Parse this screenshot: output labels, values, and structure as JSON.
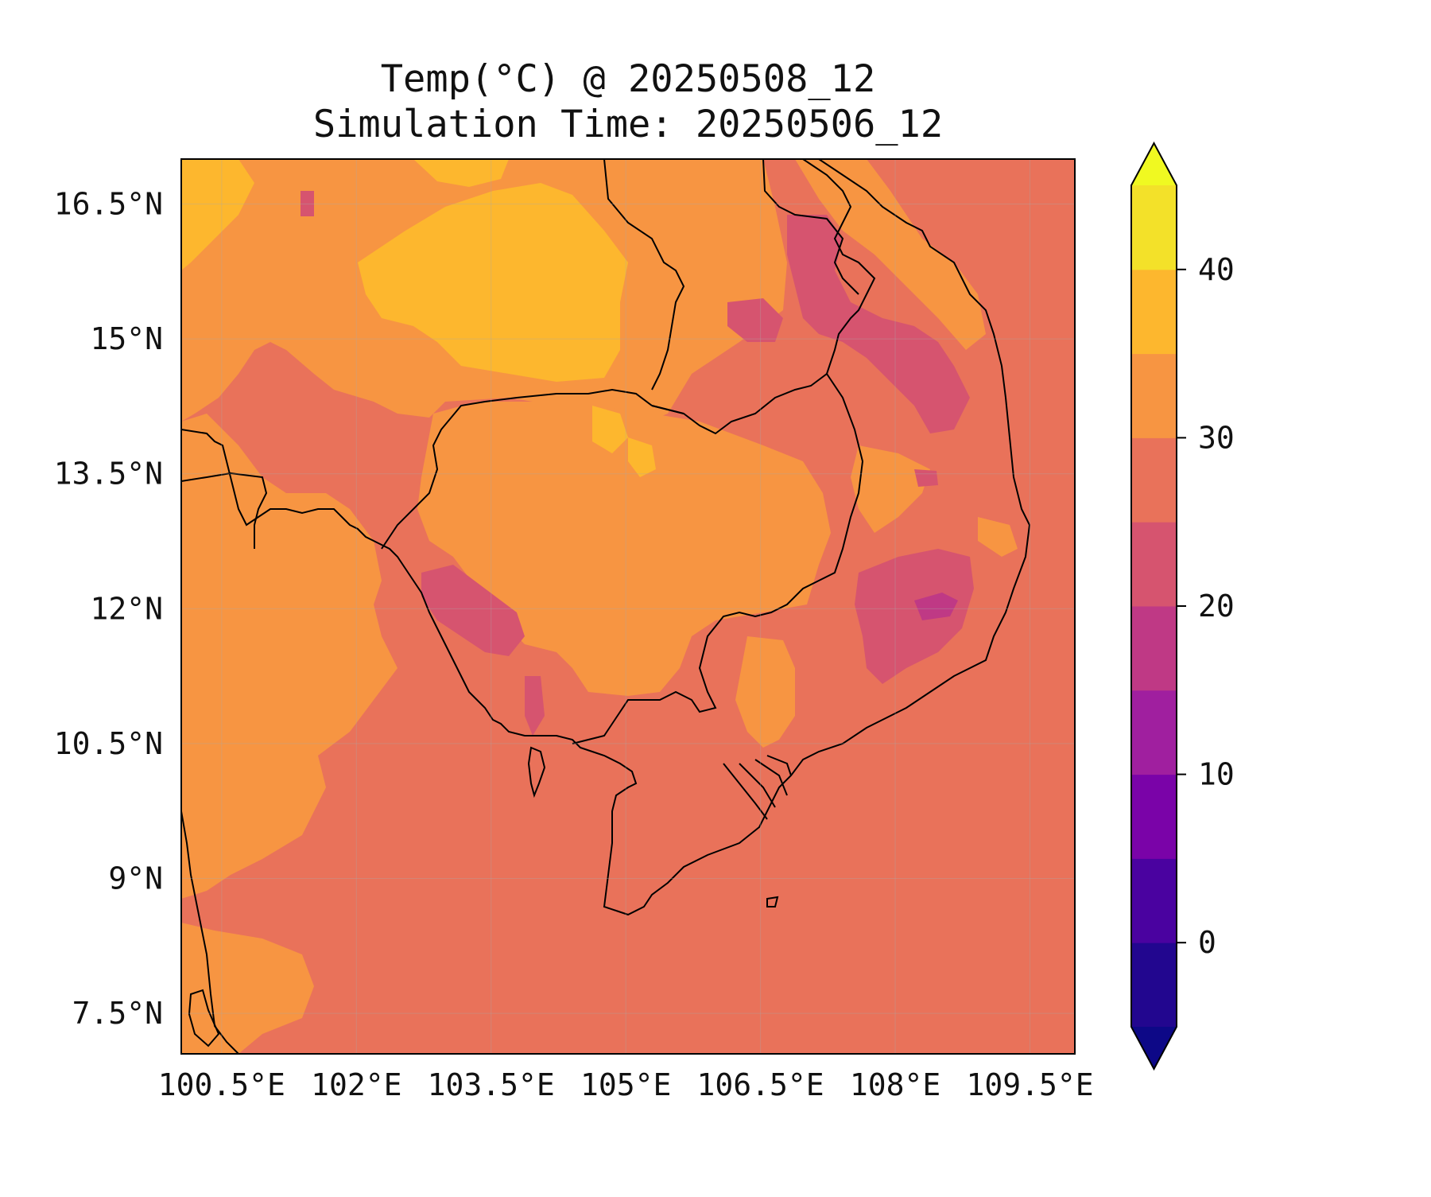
{
  "title": {
    "line1": "Temp(°C) @ 20250508_12",
    "line2": "Simulation Time: 20250506_12"
  },
  "map": {
    "lon_ticks": [
      "100.5°E",
      "102°E",
      "103.5°E",
      "105°E",
      "106.5°E",
      "108°E",
      "109.5°E"
    ],
    "lat_ticks": [
      "16.5°N",
      "15°N",
      "13.5°N",
      "12°N",
      "10.5°N",
      "9°N",
      "7.5°N"
    ],
    "lon_values": [
      100.5,
      102,
      103.5,
      105,
      106.5,
      108,
      109.5
    ],
    "lat_values": [
      16.5,
      15,
      13.5,
      12,
      10.5,
      9,
      7.5
    ],
    "lon_range": [
      100.05,
      110.0
    ],
    "lat_range": [
      7.05,
      17.0
    ],
    "grid": true
  },
  "colorbar": {
    "range": [
      -5,
      45
    ],
    "extend": "both",
    "tick_values": [
      0,
      10,
      20,
      30,
      40
    ],
    "tick_labels": [
      "0",
      "10",
      "20",
      "30",
      "40"
    ],
    "levels": [
      {
        "from": -5,
        "to": 0,
        "color": "#22068f"
      },
      {
        "from": 0,
        "to": 5,
        "color": "#4a02a0"
      },
      {
        "from": 5,
        "to": 10,
        "color": "#7a03a8"
      },
      {
        "from": 10,
        "to": 15,
        "color": "#a01f9f"
      },
      {
        "from": 15,
        "to": 20,
        "color": "#bf3985"
      },
      {
        "from": 20,
        "to": 25,
        "color": "#d6546f"
      },
      {
        "from": 25,
        "to": 30,
        "color": "#e9725a"
      },
      {
        "from": 30,
        "to": 35,
        "color": "#f79542"
      },
      {
        "from": 35,
        "to": 40,
        "color": "#fdb72e"
      },
      {
        "from": 40,
        "to": 45,
        "color": "#f3e129"
      }
    ],
    "under_color": "#0d0887",
    "over_color": "#f0f921"
  }
}
